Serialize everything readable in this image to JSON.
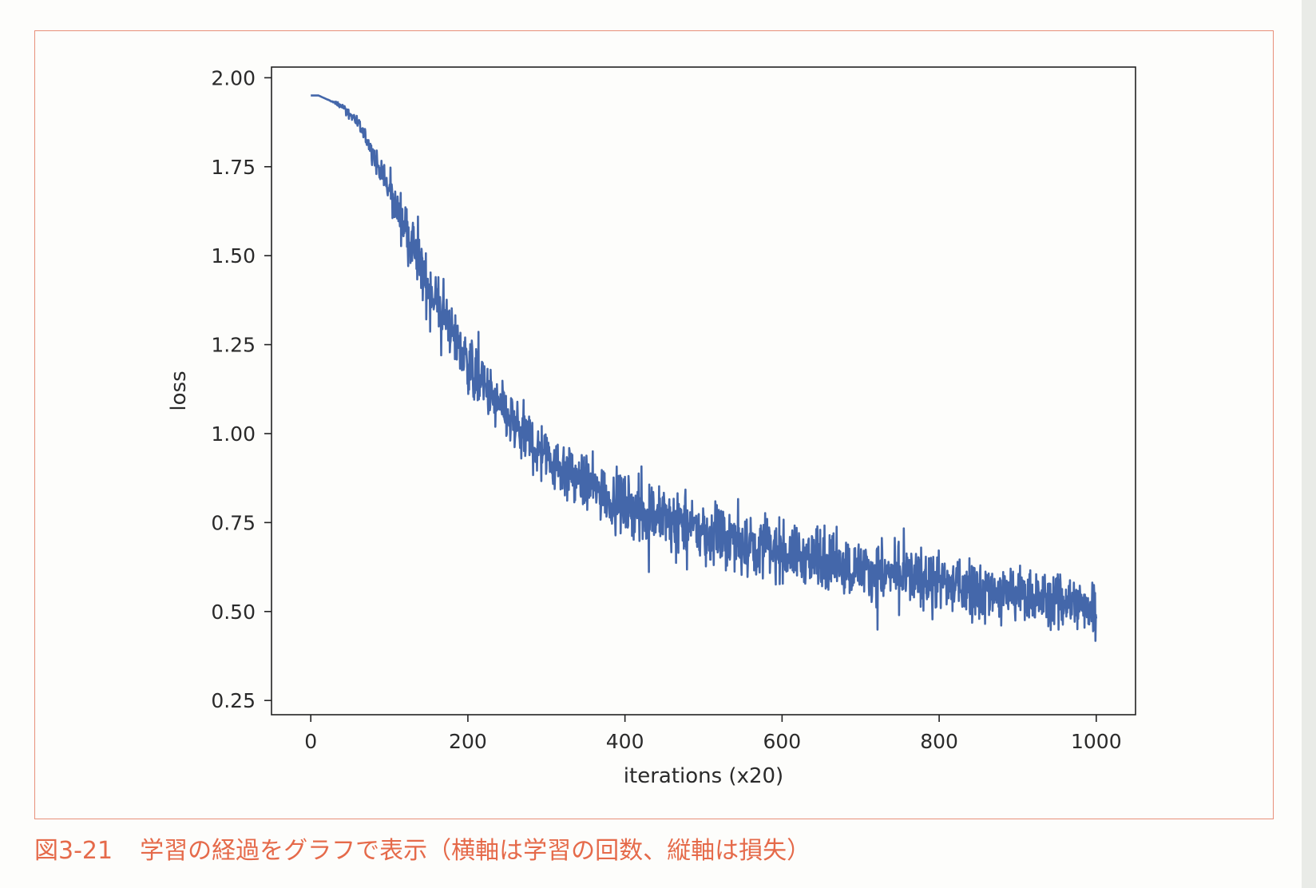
{
  "caption": {
    "figure_number": "図3-21",
    "text": "学習の経過をグラフで表示（横軸は学習の回数、縦軸は損失）"
  },
  "colors": {
    "line": "#4467aa",
    "frame": "#e8907a",
    "caption": "#e56a4a"
  },
  "chart_data": {
    "type": "line",
    "xlabel": "iterations (x20)",
    "ylabel": "loss",
    "xlim": [
      -50,
      1050
    ],
    "ylim": [
      0.21,
      2.03
    ],
    "x_ticks": [
      0,
      200,
      400,
      600,
      800,
      1000
    ],
    "x_tick_labels": [
      "0",
      "200",
      "400",
      "600",
      "800",
      "1000"
    ],
    "y_ticks": [
      0.25,
      0.5,
      0.75,
      1.0,
      1.25,
      1.5,
      1.75,
      2.0
    ],
    "y_tick_labels": [
      "0.25",
      "0.50",
      "0.75",
      "1.00",
      "1.25",
      "1.50",
      "1.75",
      "2.00"
    ],
    "grid": false,
    "series": [
      {
        "x": [
          0,
          10,
          20,
          30,
          40,
          50,
          60,
          70,
          80,
          90,
          100,
          110,
          120,
          130,
          140,
          150,
          160,
          170,
          180,
          190,
          200,
          210,
          220,
          230,
          240,
          250,
          260,
          270,
          280,
          290,
          300,
          310,
          320,
          330,
          340,
          350,
          360,
          370,
          380,
          390,
          400,
          410,
          420,
          430,
          440,
          450,
          460,
          470,
          480,
          490,
          500,
          510,
          520,
          530,
          540,
          550,
          560,
          570,
          580,
          590,
          600,
          610,
          620,
          630,
          640,
          650,
          660,
          670,
          680,
          690,
          700,
          710,
          720,
          730,
          740,
          750,
          760,
          770,
          780,
          790,
          800,
          810,
          820,
          830,
          840,
          850,
          860,
          870,
          880,
          890,
          900,
          910,
          920,
          930,
          940,
          950,
          960,
          970,
          980,
          990,
          1000
        ],
        "y": [
          1.95,
          1.95,
          1.94,
          1.93,
          1.92,
          1.9,
          1.87,
          1.83,
          1.78,
          1.73,
          1.68,
          1.63,
          1.58,
          1.52,
          1.46,
          1.41,
          1.37,
          1.33,
          1.29,
          1.24,
          1.2,
          1.16,
          1.13,
          1.1,
          1.07,
          1.05,
          1.02,
          1.0,
          0.98,
          0.96,
          0.94,
          0.92,
          0.9,
          0.89,
          0.87,
          0.86,
          0.85,
          0.84,
          0.82,
          0.81,
          0.8,
          0.79,
          0.78,
          0.78,
          0.77,
          0.76,
          0.75,
          0.75,
          0.74,
          0.73,
          0.72,
          0.72,
          0.71,
          0.7,
          0.7,
          0.69,
          0.69,
          0.68,
          0.68,
          0.67,
          0.67,
          0.66,
          0.66,
          0.65,
          0.65,
          0.64,
          0.64,
          0.63,
          0.63,
          0.62,
          0.62,
          0.62,
          0.61,
          0.61,
          0.6,
          0.6,
          0.6,
          0.59,
          0.59,
          0.59,
          0.58,
          0.58,
          0.57,
          0.57,
          0.57,
          0.56,
          0.56,
          0.56,
          0.55,
          0.55,
          0.55,
          0.54,
          0.54,
          0.54,
          0.53,
          0.53,
          0.53,
          0.52,
          0.52,
          0.52,
          0.51
        ],
        "noise_amplitude": [
          0.0,
          0.0,
          0.0,
          0.005,
          0.01,
          0.015,
          0.02,
          0.025,
          0.035,
          0.045,
          0.06,
          0.07,
          0.08,
          0.09,
          0.1,
          0.1,
          0.1,
          0.1,
          0.1,
          0.1,
          0.1,
          0.1,
          0.1,
          0.1,
          0.1,
          0.1,
          0.1,
          0.1,
          0.1,
          0.1,
          0.1,
          0.1,
          0.1,
          0.1,
          0.1,
          0.1,
          0.1,
          0.1,
          0.1,
          0.1,
          0.1,
          0.1,
          0.1,
          0.1,
          0.1,
          0.1,
          0.1,
          0.1,
          0.1,
          0.1,
          0.1,
          0.1,
          0.1,
          0.1,
          0.1,
          0.1,
          0.1,
          0.1,
          0.1,
          0.1,
          0.1,
          0.1,
          0.1,
          0.1,
          0.1,
          0.1,
          0.1,
          0.1,
          0.1,
          0.1,
          0.1,
          0.1,
          0.1,
          0.1,
          0.1,
          0.1,
          0.1,
          0.1,
          0.1,
          0.1,
          0.1,
          0.1,
          0.1,
          0.1,
          0.1,
          0.1,
          0.1,
          0.1,
          0.1,
          0.1,
          0.1,
          0.1,
          0.1,
          0.1,
          0.1,
          0.1,
          0.1,
          0.1,
          0.1,
          0.1,
          0.1
        ]
      }
    ]
  }
}
